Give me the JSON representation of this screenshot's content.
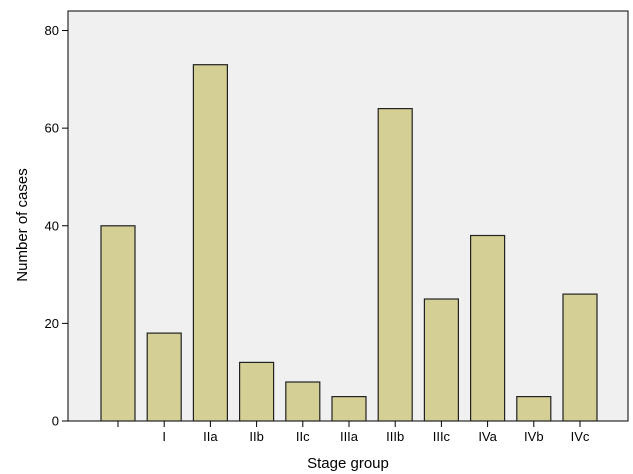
{
  "chart_data": {
    "type": "bar",
    "title": "",
    "xlabel": "Stage group",
    "ylabel": "Number of cases",
    "categories": [
      "",
      "I",
      "IIa",
      "IIb",
      "IIc",
      "IIIa",
      "IIIb",
      "IIIc",
      "IVa",
      "IVb",
      "IVc"
    ],
    "values": [
      40,
      18,
      73,
      12,
      8,
      5,
      64,
      25,
      38,
      5,
      26
    ],
    "ylim": [
      0,
      84
    ],
    "yticks": [
      0,
      20,
      40,
      60,
      80
    ],
    "grid": false,
    "legend": "none",
    "colors": {
      "bar_fill": "#d4cf95",
      "bar_stroke": "#222222",
      "plot_background": "#f0f0f0",
      "axis": "#000000"
    }
  }
}
